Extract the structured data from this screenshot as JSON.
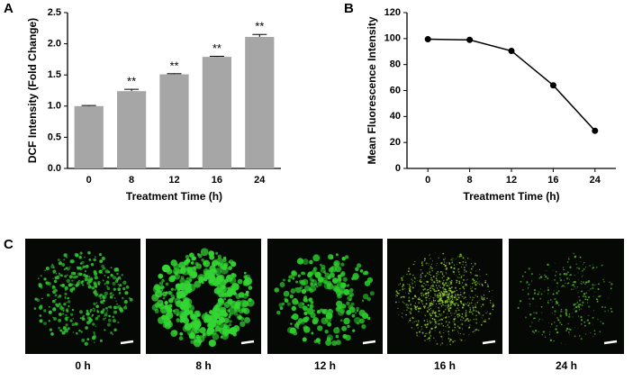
{
  "chart_data": [
    {
      "type": "bar",
      "panel": "A",
      "ylabel": "DCF Intensity (Fold Change)",
      "xlabel": "Treatment Time (h)",
      "categories": [
        "0",
        "8",
        "12",
        "16",
        "24"
      ],
      "values": [
        1.0,
        1.24,
        1.51,
        1.79,
        2.11
      ],
      "errors": [
        0.01,
        0.03,
        0.01,
        0.01,
        0.04
      ],
      "annotations": [
        null,
        "**",
        "**",
        "**",
        "**"
      ],
      "color": "#a6a6a6",
      "ylim": [
        0,
        2.5
      ],
      "yticks": [
        {
          "value": 0,
          "label": "0.0"
        },
        0.5,
        {
          "value": 1,
          "label": "1.0"
        },
        1.5,
        {
          "value": 2,
          "label": "2.0"
        },
        2.5
      ]
    },
    {
      "type": "line",
      "panel": "B",
      "ylabel": "Mean Fluorescence Intensity",
      "xlabel": "Treatment Time (h)",
      "categories": [
        "0",
        "8",
        "12",
        "16",
        "24"
      ],
      "values": [
        99.5,
        99,
        90.5,
        64,
        29
      ],
      "color": "#000000",
      "ylim": [
        0,
        120
      ],
      "yticks": [
        0,
        20,
        40,
        60,
        80,
        100,
        120
      ]
    }
  ],
  "images": {
    "panel": "C",
    "labels": [
      "0 h",
      "8 h",
      "12 h",
      "16 h",
      "24 h"
    ]
  }
}
